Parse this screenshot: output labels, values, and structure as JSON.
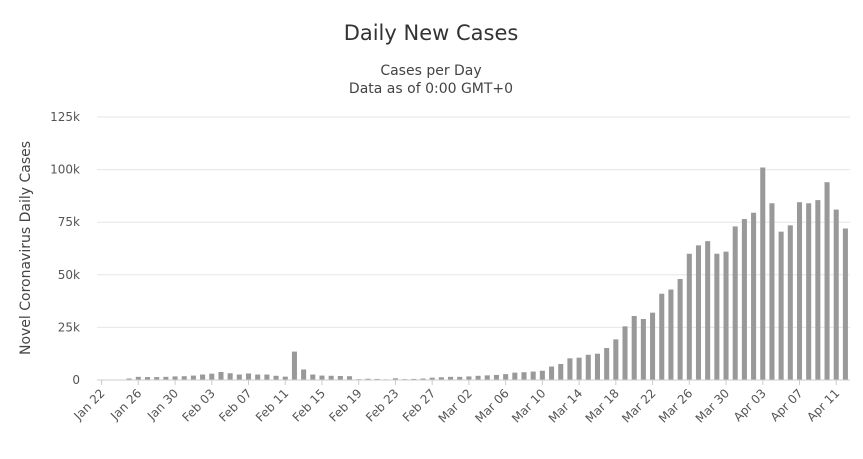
{
  "chart_data": {
    "type": "bar",
    "title": "Daily New Cases",
    "subtitle_lines": [
      "Cases per Day",
      "Data as of 0:00 GMT+0"
    ],
    "ylabel": "Novel Coronavirus Daily Cases",
    "xlabel": "",
    "ylim": [
      0,
      125000
    ],
    "y_ticks": [
      {
        "value": 0,
        "label": "0"
      },
      {
        "value": 25000,
        "label": "25k"
      },
      {
        "value": 50000,
        "label": "50k"
      },
      {
        "value": 75000,
        "label": "75k"
      },
      {
        "value": 100000,
        "label": "100k"
      },
      {
        "value": 125000,
        "label": "125k"
      }
    ],
    "grid": true,
    "bar_color": "#999999",
    "categories": [
      "Jan 22",
      "Jan 23",
      "Jan 24",
      "Jan 25",
      "Jan 26",
      "Jan 27",
      "Jan 28",
      "Jan 29",
      "Jan 30",
      "Jan 31",
      "Feb 01",
      "Feb 02",
      "Feb 03",
      "Feb 04",
      "Feb 05",
      "Feb 06",
      "Feb 07",
      "Feb 08",
      "Feb 09",
      "Feb 10",
      "Feb 11",
      "Feb 12",
      "Feb 13",
      "Feb 14",
      "Feb 15",
      "Feb 16",
      "Feb 17",
      "Feb 18",
      "Feb 19",
      "Feb 20",
      "Feb 21",
      "Feb 22",
      "Feb 23",
      "Feb 24",
      "Feb 25",
      "Feb 26",
      "Feb 27",
      "Feb 28",
      "Feb 29",
      "Mar 01",
      "Mar 02",
      "Mar 03",
      "Mar 04",
      "Mar 05",
      "Mar 06",
      "Mar 07",
      "Mar 08",
      "Mar 09",
      "Mar 10",
      "Mar 11",
      "Mar 12",
      "Mar 13",
      "Mar 14",
      "Mar 15",
      "Mar 16",
      "Mar 17",
      "Mar 18",
      "Mar 19",
      "Mar 20",
      "Mar 21",
      "Mar 22",
      "Mar 23",
      "Mar 24",
      "Mar 25",
      "Mar 26",
      "Mar 27",
      "Mar 28",
      "Mar 29",
      "Mar 30",
      "Mar 31",
      "Apr 01",
      "Apr 02",
      "Apr 03",
      "Apr 04",
      "Apr 05",
      "Apr 06",
      "Apr 07",
      "Apr 08",
      "Apr 09",
      "Apr 10",
      "Apr 11",
      "Apr 12"
    ],
    "x_tick_labels": [
      "Jan 22",
      "Jan 26",
      "Jan 30",
      "Feb 03",
      "Feb 07",
      "Feb 11",
      "Feb 15",
      "Feb 19",
      "Feb 23",
      "Feb 27",
      "Mar 02",
      "Mar 06",
      "Mar 10",
      "Mar 14",
      "Mar 18",
      "Mar 22",
      "Mar 26",
      "Mar 30",
      "Apr 03",
      "Apr 07",
      "Apr 11"
    ],
    "values": [
      0,
      100,
      100,
      700,
      1500,
      1400,
      1400,
      1500,
      1700,
      1800,
      2100,
      2600,
      3000,
      3800,
      3200,
      2600,
      3100,
      2600,
      2600,
      2000,
      1600,
      13500,
      5000,
      2600,
      2100,
      2000,
      1900,
      1800,
      400,
      600,
      500,
      300,
      800,
      400,
      500,
      700,
      1100,
      1300,
      1500,
      1500,
      1700,
      2000,
      2200,
      2400,
      2800,
      3500,
      3700,
      4000,
      4400,
      6400,
      7600,
      10300,
      10600,
      12000,
      12500,
      15200,
      19300,
      25500,
      30400,
      29000,
      32000,
      41000,
      43000,
      48000,
      60000,
      64000,
      66000,
      60000,
      61000,
      73000,
      76500,
      79500,
      101000,
      84000,
      70500,
      73500,
      84500,
      84000,
      85500,
      94000,
      81000,
      72000
    ]
  }
}
